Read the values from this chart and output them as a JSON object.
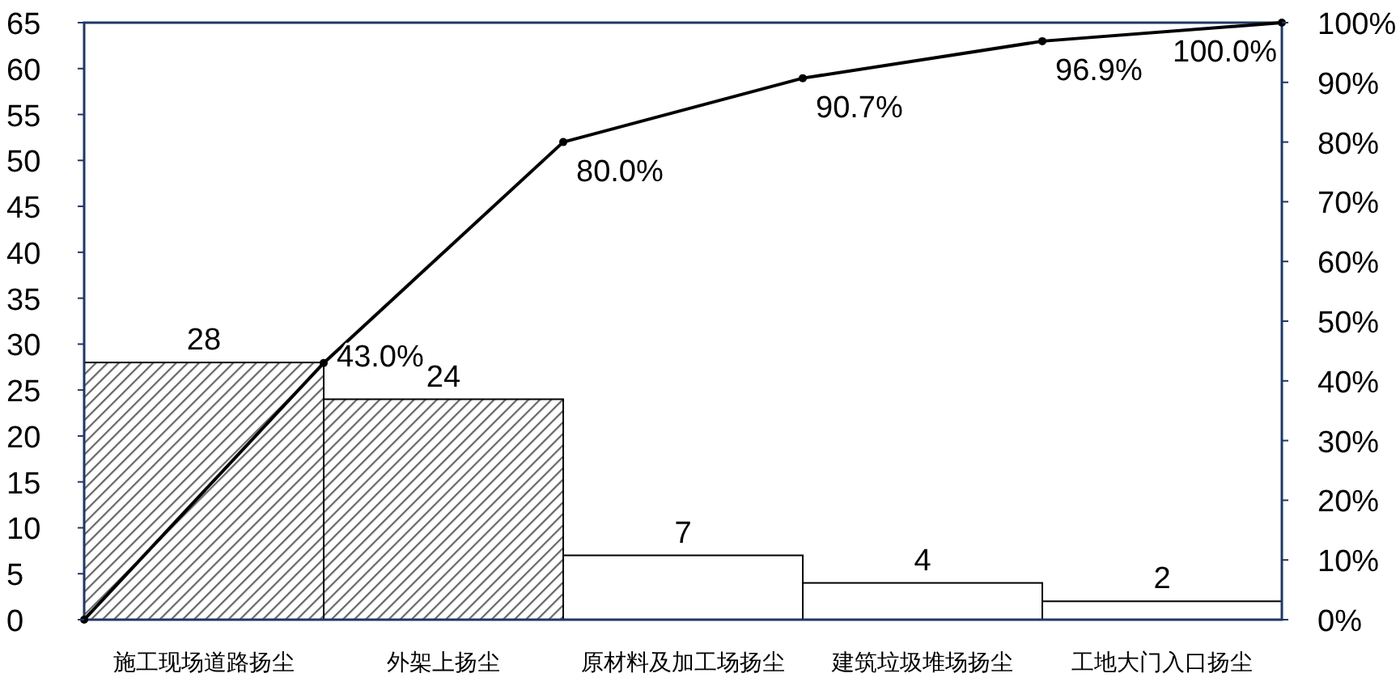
{
  "chart_data": {
    "type": "bar",
    "categories": [
      null,
      "施工现场道路扬尘",
      null,
      "外架上扬尘",
      null,
      "原材料及加工场扬尘",
      null,
      "建筑垃圾堆场扬尘",
      null,
      "工地大门入口扬尘",
      null
    ],
    "values": [
      null,
      28,
      null,
      24,
      null,
      7,
      null,
      4,
      null,
      2,
      null
    ],
    "colors": [
      null,
      "#666666",
      null,
      "#666666",
      null,
      "#ffffff",
      null,
      "#ffffff",
      null,
      "#ffffff",
      null
    ],
    "data_labels": true,
    "series": [
      {
        "type": "line",
        "axis": "y2",
        "color": "#000000",
        "values": [
          0,
          null,
          43.0,
          null,
          80.0,
          null,
          90.7,
          null,
          96.9,
          null,
          100.0
        ],
        "value_labels": [
          null,
          null,
          "43.0%",
          null,
          "80.0%",
          null,
          "90.7%",
          null,
          "96.9%",
          null,
          "100.0%"
        ]
      }
    ],
    "ylim": [
      0,
      65
    ],
    "yticks": [
      0,
      5,
      10,
      15,
      20,
      25,
      30,
      35,
      40,
      45,
      50,
      55,
      60,
      65
    ],
    "y2lim": [
      0,
      100
    ],
    "y2ticks": [
      {
        "value": 0,
        "label": "0%"
      },
      {
        "value": 10,
        "label": "10%"
      },
      {
        "value": 20,
        "label": "20%"
      },
      {
        "value": 30,
        "label": "30%"
      },
      {
        "value": 40,
        "label": "40%"
      },
      {
        "value": 50,
        "label": "50%"
      },
      {
        "value": 60,
        "label": "60%"
      },
      {
        "value": 70,
        "label": "70%"
      },
      {
        "value": 80,
        "label": "80%"
      },
      {
        "value": 90,
        "label": "90%"
      },
      {
        "value": 100,
        "label": "100%"
      }
    ],
    "marker": "circle",
    "grid": false
  }
}
